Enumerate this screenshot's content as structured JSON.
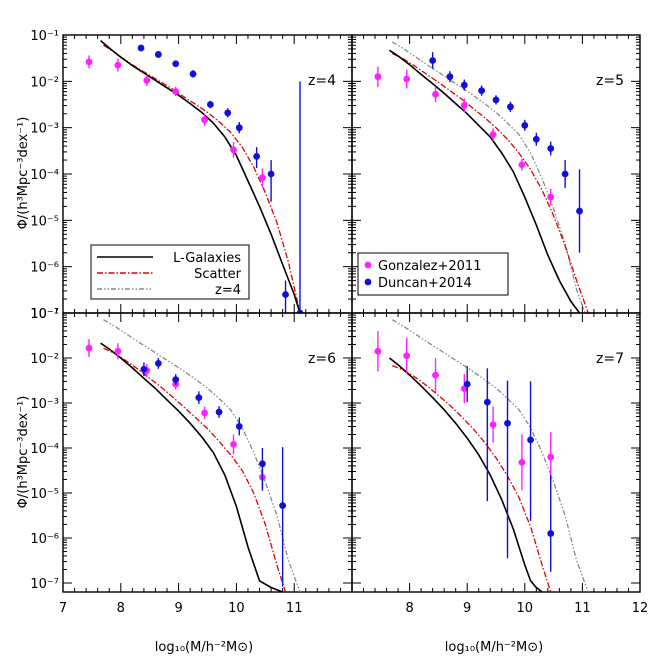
{
  "figure": {
    "xlabel": "log₁₀(M/h⁻²M⊙)",
    "ylabel": "Φ/(h³Mpc⁻³dex⁻¹)",
    "ytick_labels": [
      "10⁻¹",
      "10⁻²",
      "10⁻³",
      "10⁻⁴",
      "10⁻⁵",
      "10⁻⁶",
      "10⁻⁷"
    ],
    "xtick_labels_left": [
      "7",
      "8",
      "9",
      "10",
      "11"
    ],
    "xtick_labels_right": [
      "8",
      "9",
      "10",
      "11",
      "12"
    ]
  },
  "legend_models": {
    "placement": "lower-left of top-left panel",
    "entries": [
      {
        "label": "L-Galaxies",
        "color": "#000000",
        "dash": "solid"
      },
      {
        "label": "Scatter",
        "color": "#dd0000",
        "dash": "dash-dot"
      },
      {
        "label": "z=4",
        "color": "#888888",
        "dash": "dash-dot-dot"
      }
    ]
  },
  "legend_obs": {
    "placement": "lower-left of top-right panel",
    "entries": [
      {
        "label": "Gonzalez+2011",
        "color": "#ff22ff"
      },
      {
        "label": "Duncan+2014",
        "color": "#1010dd"
      }
    ]
  },
  "chart_data": [
    {
      "type": "line+scatter",
      "label": "z=4",
      "xlim": [
        7,
        12
      ],
      "ylim_log10": [
        -7,
        -1
      ],
      "yscale": "log",
      "series": [
        {
          "name": "L-Galaxies",
          "color": "#000000",
          "x": [
            7.65,
            7.8,
            8.0,
            8.2,
            8.4,
            8.6,
            8.8,
            9.0,
            9.2,
            9.4,
            9.6,
            9.8,
            10.0,
            10.2,
            10.4,
            10.6,
            10.8,
            11.0,
            11.1
          ],
          "y": [
            -1.12,
            -1.28,
            -1.48,
            -1.66,
            -1.82,
            -1.98,
            -2.14,
            -2.3,
            -2.48,
            -2.67,
            -2.9,
            -3.2,
            -3.6,
            -4.15,
            -4.7,
            -5.3,
            -5.95,
            -6.6,
            -7.0
          ]
        },
        {
          "name": "Scatter",
          "color": "#dd0000",
          "x": [
            7.7,
            7.9,
            8.1,
            8.3,
            8.5,
            8.7,
            8.9,
            9.1,
            9.3,
            9.5,
            9.7,
            9.9,
            10.1,
            10.3,
            10.5,
            10.7,
            10.9,
            11.1
          ],
          "y": [
            -1.22,
            -1.38,
            -1.56,
            -1.72,
            -1.87,
            -2.02,
            -2.17,
            -2.34,
            -2.5,
            -2.67,
            -2.87,
            -3.1,
            -3.42,
            -3.85,
            -4.4,
            -5.05,
            -5.9,
            -7.0
          ]
        }
      ],
      "points": [
        {
          "name": "Gonzalez+2011",
          "color": "#ff22ff",
          "x": [
            7.45,
            7.95,
            8.45,
            8.95,
            9.45,
            9.95,
            10.45
          ],
          "y": [
            -1.58,
            -1.65,
            -1.98,
            -2.22,
            -2.83,
            -3.48,
            -4.08
          ],
          "yerr": [
            0.14,
            0.14,
            0.12,
            0.1,
            0.13,
            0.17,
            0.2
          ]
        },
        {
          "name": "Duncan+2014",
          "color": "#1010dd",
          "x": [
            8.35,
            8.65,
            8.95,
            9.25,
            9.55,
            9.85,
            10.05,
            10.35,
            10.6,
            10.85,
            11.1
          ],
          "y": [
            -1.28,
            -1.42,
            -1.62,
            -1.84,
            -2.5,
            -2.68,
            -3.0,
            -3.62,
            -4.0,
            -6.6,
            -7.0
          ],
          "yerr_lo": [
            0.07,
            0.07,
            0.07,
            0.08,
            0.08,
            0.1,
            0.12,
            0.25,
            0.6,
            0.9,
            0.0
          ],
          "yerr_hi": [
            0.07,
            0.07,
            0.07,
            0.08,
            0.08,
            0.1,
            0.12,
            0.2,
            0.3,
            0.3,
            5.0
          ]
        }
      ]
    },
    {
      "type": "line+scatter",
      "label": "z=5",
      "xlim": [
        7,
        12
      ],
      "ylim_log10": [
        -7,
        -1
      ],
      "yscale": "log",
      "series": [
        {
          "name": "L-Galaxies",
          "color": "#000000",
          "x": [
            7.65,
            7.8,
            8.0,
            8.2,
            8.4,
            8.6,
            8.8,
            9.0,
            9.2,
            9.4,
            9.6,
            9.8,
            10.0,
            10.2,
            10.4,
            10.6,
            10.8,
            10.95
          ],
          "y": [
            -1.33,
            -1.45,
            -1.64,
            -1.85,
            -2.05,
            -2.26,
            -2.48,
            -2.7,
            -2.95,
            -3.2,
            -3.55,
            -3.95,
            -4.5,
            -5.1,
            -5.75,
            -6.3,
            -6.75,
            -7.0
          ]
        },
        {
          "name": "Scatter",
          "color": "#dd0000",
          "x": [
            7.7,
            7.9,
            8.1,
            8.3,
            8.5,
            8.7,
            8.9,
            9.1,
            9.3,
            9.5,
            9.7,
            9.9,
            10.1,
            10.3,
            10.5,
            10.7,
            10.9,
            11.1
          ],
          "y": [
            -1.4,
            -1.52,
            -1.68,
            -1.85,
            -2.02,
            -2.2,
            -2.38,
            -2.58,
            -2.78,
            -3.0,
            -3.25,
            -3.55,
            -3.9,
            -4.35,
            -4.9,
            -5.55,
            -6.3,
            -7.0
          ]
        },
        {
          "name": "z=4",
          "color": "#888888",
          "x": [
            7.7,
            7.9,
            8.1,
            8.3,
            8.5,
            8.7,
            8.9,
            9.1,
            9.3,
            9.5,
            9.7,
            9.9,
            10.1,
            10.3,
            10.5,
            10.7,
            10.9,
            11.05
          ],
          "y": [
            -1.15,
            -1.3,
            -1.47,
            -1.64,
            -1.8,
            -1.97,
            -2.13,
            -2.3,
            -2.48,
            -2.67,
            -2.9,
            -3.15,
            -3.55,
            -4.1,
            -4.75,
            -5.5,
            -6.5,
            -7.0
          ]
        }
      ],
      "points": [
        {
          "name": "Gonzalez+2011",
          "color": "#ff22ff",
          "x": [
            7.45,
            7.95,
            8.45,
            8.95,
            9.45,
            9.95,
            10.45
          ],
          "y": [
            -1.9,
            -1.95,
            -2.28,
            -2.52,
            -3.15,
            -3.8,
            -4.5
          ],
          "yerr": [
            0.22,
            0.2,
            0.17,
            0.15,
            0.14,
            0.13,
            0.18
          ]
        },
        {
          "name": "Duncan+2014",
          "color": "#1010dd",
          "x": [
            8.4,
            8.7,
            8.95,
            9.25,
            9.5,
            9.75,
            10.0,
            10.2,
            10.45,
            10.7,
            10.95
          ],
          "y": [
            -1.55,
            -1.9,
            -2.08,
            -2.2,
            -2.4,
            -2.55,
            -2.95,
            -3.25,
            -3.45,
            -4.0,
            -4.8
          ],
          "yerr": [
            0.18,
            0.12,
            0.12,
            0.11,
            0.1,
            0.11,
            0.12,
            0.14,
            0.15,
            0.3,
            0.9
          ]
        }
      ]
    },
    {
      "type": "line+scatter",
      "label": "z=6",
      "xlim": [
        7,
        12
      ],
      "ylim_log10": [
        -7.2,
        -1
      ],
      "yscale": "log",
      "series": [
        {
          "name": "L-Galaxies",
          "color": "#000000",
          "x": [
            7.65,
            7.8,
            8.0,
            8.2,
            8.4,
            8.6,
            8.8,
            9.0,
            9.2,
            9.4,
            9.6,
            9.8,
            10.0,
            10.2,
            10.4,
            10.6,
            10.8
          ],
          "y": [
            -1.67,
            -1.8,
            -2.0,
            -2.22,
            -2.45,
            -2.68,
            -2.93,
            -3.18,
            -3.45,
            -3.75,
            -4.1,
            -4.6,
            -5.3,
            -6.2,
            -6.95,
            -7.1,
            -7.2
          ]
        },
        {
          "name": "Scatter",
          "color": "#dd0000",
          "x": [
            7.7,
            7.9,
            8.1,
            8.3,
            8.5,
            8.7,
            8.9,
            9.1,
            9.3,
            9.5,
            9.7,
            9.9,
            10.1,
            10.3,
            10.5,
            10.7,
            10.85
          ],
          "y": [
            -1.78,
            -1.9,
            -2.07,
            -2.25,
            -2.45,
            -2.65,
            -2.87,
            -3.1,
            -3.33,
            -3.57,
            -3.85,
            -4.15,
            -4.5,
            -5.0,
            -5.7,
            -6.6,
            -7.2
          ]
        },
        {
          "name": "z=4",
          "color": "#888888",
          "x": [
            7.7,
            7.9,
            8.1,
            8.3,
            8.5,
            8.7,
            8.9,
            9.1,
            9.3,
            9.5,
            9.7,
            9.9,
            10.1,
            10.3,
            10.5,
            10.7,
            10.9,
            11.1
          ],
          "y": [
            -1.15,
            -1.3,
            -1.47,
            -1.64,
            -1.8,
            -1.97,
            -2.13,
            -2.3,
            -2.48,
            -2.67,
            -2.9,
            -3.15,
            -3.55,
            -4.1,
            -4.75,
            -5.5,
            -6.5,
            -7.2
          ]
        }
      ],
      "points": [
        {
          "name": "Gonzalez+2011",
          "color": "#ff22ff",
          "x": [
            7.45,
            7.95,
            8.45,
            8.95,
            9.45,
            9.95,
            10.45
          ],
          "y": [
            -1.78,
            -1.85,
            -2.28,
            -2.58,
            -3.22,
            -3.92,
            -4.65
          ],
          "yerr": [
            0.2,
            0.18,
            0.15,
            0.12,
            0.14,
            0.22,
            0.25
          ]
        },
        {
          "name": "Duncan+2014",
          "color": "#1010dd",
          "x": [
            8.4,
            8.65,
            8.95,
            9.35,
            9.7,
            10.05,
            10.45,
            10.8
          ],
          "y": [
            -2.25,
            -2.12,
            -2.48,
            -2.88,
            -3.2,
            -3.52,
            -4.35,
            -5.28
          ],
          "yerr_lo": [
            0.15,
            0.12,
            0.12,
            0.14,
            0.13,
            0.2,
            0.6,
            1.8
          ],
          "yerr_hi": [
            0.15,
            0.12,
            0.12,
            0.14,
            0.13,
            0.2,
            0.35,
            1.3
          ]
        }
      ]
    },
    {
      "type": "line+scatter",
      "label": "z=7",
      "xlim": [
        7,
        12
      ],
      "ylim_log10": [
        -7.2,
        -1
      ],
      "yscale": "log",
      "series": [
        {
          "name": "L-Galaxies",
          "color": "#000000",
          "x": [
            7.65,
            7.8,
            8.0,
            8.2,
            8.4,
            8.6,
            8.8,
            9.0,
            9.2,
            9.4,
            9.6,
            9.8,
            10.0,
            10.1,
            10.2,
            10.3
          ],
          "y": [
            -2.0,
            -2.15,
            -2.38,
            -2.62,
            -2.88,
            -3.15,
            -3.45,
            -3.78,
            -4.15,
            -4.6,
            -5.15,
            -5.8,
            -6.6,
            -6.95,
            -7.1,
            -7.2
          ]
        },
        {
          "name": "Scatter",
          "color": "#dd0000",
          "x": [
            7.7,
            7.9,
            8.1,
            8.3,
            8.5,
            8.7,
            8.9,
            9.1,
            9.3,
            9.5,
            9.7,
            9.9,
            10.1,
            10.3,
            10.45
          ],
          "y": [
            -2.17,
            -2.27,
            -2.43,
            -2.62,
            -2.83,
            -3.05,
            -3.3,
            -3.57,
            -3.87,
            -4.22,
            -4.62,
            -5.1,
            -5.75,
            -6.6,
            -7.2
          ]
        },
        {
          "name": "z=4",
          "color": "#888888",
          "x": [
            7.7,
            7.9,
            8.1,
            8.3,
            8.5,
            8.7,
            8.9,
            9.1,
            9.3,
            9.5,
            9.7,
            9.9,
            10.1,
            10.3,
            10.5,
            10.7,
            10.9,
            11.1
          ],
          "y": [
            -1.15,
            -1.3,
            -1.47,
            -1.64,
            -1.8,
            -1.97,
            -2.13,
            -2.3,
            -2.48,
            -2.67,
            -2.9,
            -3.15,
            -3.55,
            -4.1,
            -4.75,
            -5.5,
            -6.5,
            -7.2
          ]
        }
      ],
      "points": [
        {
          "name": "Gonzalez+2011",
          "color": "#ff22ff",
          "x": [
            7.45,
            7.95,
            8.45,
            8.95,
            9.45,
            9.95,
            10.45
          ],
          "y": [
            -1.85,
            -1.95,
            -2.38,
            -2.68,
            -3.48,
            -4.32,
            -4.2
          ],
          "yerr": [
            0.45,
            0.4,
            0.38,
            0.32,
            0.4,
            0.62,
            0.55
          ]
        },
        {
          "name": "Duncan+2014",
          "color": "#1010dd",
          "x": [
            9.0,
            9.35,
            9.7,
            10.1,
            10.45
          ],
          "y": [
            -2.58,
            -2.98,
            -3.45,
            -3.82,
            -5.9
          ],
          "yerr_lo": [
            0.4,
            2.2,
            3.0,
            1.8,
            0.85
          ],
          "yerr_hi": [
            0.4,
            0.75,
            0.95,
            1.3,
            1.3
          ]
        }
      ]
    }
  ]
}
